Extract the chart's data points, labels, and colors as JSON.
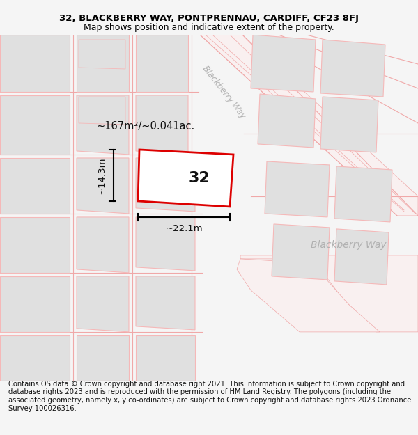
{
  "title_line1": "32, BLACKBERRY WAY, PONTPRENNAU, CARDIFF, CF23 8FJ",
  "title_line2": "Map shows position and indicative extent of the property.",
  "copyright_text": "Contains OS data © Crown copyright and database right 2021. This information is subject to Crown copyright and database rights 2023 and is reproduced with the permission of HM Land Registry. The polygons (including the associated geometry, namely x, y co-ordinates) are subject to Crown copyright and database rights 2023 Ordnance Survey 100026316.",
  "area_text": "~167m²/~0.041ac.",
  "label_32": "32",
  "dim_width": "~22.1m",
  "dim_height": "~14.3m",
  "street_label_diagonal": "Blackberry Way",
  "street_label_horizontal": "Blackberry Way",
  "bg_color": "#f5f5f5",
  "map_bg": "#ffffff",
  "building_fill": "#e0e0e0",
  "building_stroke": "#f5b8b8",
  "road_color": "#f5c8c8",
  "highlight_color": "#dd0000",
  "title_fontsize": 9.5,
  "subtitle_fontsize": 9.0,
  "copyright_fontsize": 7.2
}
